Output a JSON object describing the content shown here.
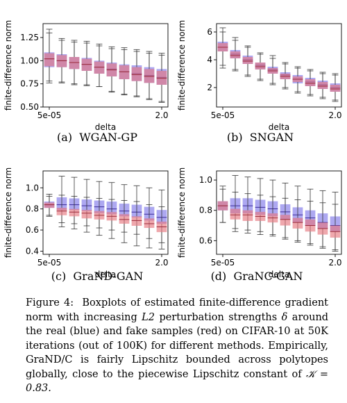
{
  "chart_data": [
    {
      "type": "box",
      "panel_label": "(a)",
      "method": "WGAN-GP",
      "xlabel": "delta",
      "ylabel": "finite-difference norm",
      "x_tick_labels": [
        "5e-05",
        "2.0"
      ],
      "ylim": [
        0.5,
        1.4
      ],
      "yticks": [
        0.5,
        0.75,
        1.0,
        1.25
      ],
      "ytick_labels": [
        "0.50",
        "0.75",
        "1.00",
        "1.25"
      ],
      "series": [
        {
          "color": "#7b73e8",
          "boxes": [
            {
              "min": 0.76,
              "q1": 0.93,
              "median": 1.02,
              "q3": 1.09,
              "max": 1.34
            },
            {
              "min": 0.76,
              "q1": 0.93,
              "median": 1.0,
              "q3": 1.07,
              "max": 1.24
            },
            {
              "min": 0.74,
              "q1": 0.91,
              "median": 0.98,
              "q3": 1.04,
              "max": 1.22
            },
            {
              "min": 0.73,
              "q1": 0.89,
              "median": 0.96,
              "q3": 1.03,
              "max": 1.21
            },
            {
              "min": 0.72,
              "q1": 0.86,
              "median": 0.93,
              "q3": 1.0,
              "max": 1.18
            },
            {
              "min": 0.66,
              "q1": 0.83,
              "median": 0.91,
              "q3": 0.98,
              "max": 1.15
            },
            {
              "min": 0.63,
              "q1": 0.8,
              "median": 0.88,
              "q3": 0.96,
              "max": 1.14
            },
            {
              "min": 0.61,
              "q1": 0.78,
              "median": 0.86,
              "q3": 0.95,
              "max": 1.12
            },
            {
              "min": 0.58,
              "q1": 0.76,
              "median": 0.84,
              "q3": 0.93,
              "max": 1.1
            },
            {
              "min": 0.55,
              "q1": 0.74,
              "median": 0.82,
              "q3": 0.91,
              "max": 1.08
            }
          ]
        },
        {
          "color": "#e5737b",
          "boxes": [
            {
              "min": 0.78,
              "q1": 0.94,
              "median": 1.02,
              "q3": 1.08,
              "max": 1.3
            },
            {
              "min": 0.77,
              "q1": 0.93,
              "median": 1.0,
              "q3": 1.06,
              "max": 1.22
            },
            {
              "min": 0.75,
              "q1": 0.91,
              "median": 0.98,
              "q3": 1.04,
              "max": 1.2
            },
            {
              "min": 0.74,
              "q1": 0.89,
              "median": 0.96,
              "q3": 1.02,
              "max": 1.19
            },
            {
              "min": 0.72,
              "q1": 0.86,
              "median": 0.93,
              "q3": 0.99,
              "max": 1.16
            },
            {
              "min": 0.67,
              "q1": 0.83,
              "median": 0.9,
              "q3": 0.97,
              "max": 1.13
            },
            {
              "min": 0.64,
              "q1": 0.8,
              "median": 0.88,
              "q3": 0.95,
              "max": 1.12
            },
            {
              "min": 0.62,
              "q1": 0.78,
              "median": 0.85,
              "q3": 0.93,
              "max": 1.1
            },
            {
              "min": 0.59,
              "q1": 0.76,
              "median": 0.83,
              "q3": 0.91,
              "max": 1.08
            },
            {
              "min": 0.56,
              "q1": 0.74,
              "median": 0.81,
              "q3": 0.89,
              "max": 1.06
            }
          ]
        }
      ]
    },
    {
      "type": "box",
      "panel_label": "(b)",
      "method": "SNGAN",
      "xlabel": "delta",
      "ylabel": "finite-difference norm",
      "x_tick_labels": [
        "5e-05",
        "2.0"
      ],
      "ylim": [
        0.6,
        6.6
      ],
      "yticks": [
        2,
        4,
        6
      ],
      "ytick_labels": [
        "2",
        "4",
        "6"
      ],
      "series": [
        {
          "color": "#7b73e8",
          "boxes": [
            {
              "min": 3.4,
              "q1": 4.6,
              "median": 4.9,
              "q3": 5.3,
              "max": 6.3
            },
            {
              "min": 3.2,
              "q1": 4.1,
              "median": 4.4,
              "q3": 4.7,
              "max": 5.6
            },
            {
              "min": 2.8,
              "q1": 3.7,
              "median": 4.0,
              "q3": 4.3,
              "max": 5.0
            },
            {
              "min": 2.5,
              "q1": 3.3,
              "median": 3.6,
              "q3": 3.8,
              "max": 4.5
            },
            {
              "min": 2.2,
              "q1": 3.0,
              "median": 3.3,
              "q3": 3.5,
              "max": 4.3
            },
            {
              "min": 1.9,
              "q1": 2.6,
              "median": 2.9,
              "q3": 3.1,
              "max": 3.8
            },
            {
              "min": 1.6,
              "q1": 2.3,
              "median": 2.6,
              "q3": 2.9,
              "max": 3.5
            },
            {
              "min": 1.4,
              "q1": 2.1,
              "median": 2.4,
              "q3": 2.7,
              "max": 3.3
            },
            {
              "min": 1.2,
              "q1": 1.9,
              "median": 2.2,
              "q3": 2.5,
              "max": 3.1
            },
            {
              "min": 1.0,
              "q1": 1.7,
              "median": 2.0,
              "q3": 2.3,
              "max": 3.0
            }
          ]
        },
        {
          "color": "#e5737b",
          "boxes": [
            {
              "min": 3.6,
              "q1": 4.6,
              "median": 4.9,
              "q3": 5.2,
              "max": 6.0
            },
            {
              "min": 3.3,
              "q1": 4.1,
              "median": 4.3,
              "q3": 4.6,
              "max": 5.4
            },
            {
              "min": 2.9,
              "q1": 3.7,
              "median": 3.9,
              "q3": 4.2,
              "max": 4.9
            },
            {
              "min": 2.6,
              "q1": 3.3,
              "median": 3.5,
              "q3": 3.8,
              "max": 4.4
            },
            {
              "min": 2.3,
              "q1": 3.0,
              "median": 3.2,
              "q3": 3.4,
              "max": 4.1
            },
            {
              "min": 2.0,
              "q1": 2.6,
              "median": 2.8,
              "q3": 3.0,
              "max": 3.7
            },
            {
              "min": 1.7,
              "q1": 2.4,
              "median": 2.6,
              "q3": 2.8,
              "max": 3.4
            },
            {
              "min": 1.5,
              "q1": 2.1,
              "median": 2.3,
              "q3": 2.6,
              "max": 3.2
            },
            {
              "min": 1.3,
              "q1": 1.9,
              "median": 2.1,
              "q3": 2.4,
              "max": 3.0
            },
            {
              "min": 1.1,
              "q1": 1.7,
              "median": 1.9,
              "q3": 2.2,
              "max": 2.9
            }
          ]
        }
      ]
    },
    {
      "type": "box",
      "panel_label": "(c)",
      "method": "GraND-GAN",
      "xlabel": "delta",
      "ylabel": "finite-difference norm",
      "x_tick_labels": [
        "5e-05",
        "2.0"
      ],
      "ylim": [
        0.37,
        1.16
      ],
      "yticks": [
        0.4,
        0.6,
        0.8,
        1.0
      ],
      "ytick_labels": [
        "0.4",
        "0.6",
        "0.8",
        "1.0"
      ],
      "series": [
        {
          "color": "#7b73e8",
          "boxes": [
            {
              "min": 0.73,
              "q1": 0.81,
              "median": 0.84,
              "q3": 0.87,
              "max": 0.94
            },
            {
              "min": 0.67,
              "q1": 0.79,
              "median": 0.84,
              "q3": 0.91,
              "max": 1.11
            },
            {
              "min": 0.66,
              "q1": 0.79,
              "median": 0.84,
              "q3": 0.9,
              "max": 1.1
            },
            {
              "min": 0.64,
              "q1": 0.78,
              "median": 0.83,
              "q3": 0.89,
              "max": 1.08
            },
            {
              "min": 0.62,
              "q1": 0.76,
              "median": 0.82,
              "q3": 0.88,
              "max": 1.06
            },
            {
              "min": 0.6,
              "q1": 0.75,
              "median": 0.8,
              "q3": 0.87,
              "max": 1.05
            },
            {
              "min": 0.58,
              "q1": 0.73,
              "median": 0.78,
              "q3": 0.85,
              "max": 1.03
            },
            {
              "min": 0.56,
              "q1": 0.72,
              "median": 0.77,
              "q3": 0.84,
              "max": 1.02
            },
            {
              "min": 0.52,
              "q1": 0.69,
              "median": 0.75,
              "q3": 0.82,
              "max": 1.0
            },
            {
              "min": 0.48,
              "q1": 0.66,
              "median": 0.72,
              "q3": 0.79,
              "max": 0.98
            }
          ]
        },
        {
          "color": "#e5737b",
          "boxes": [
            {
              "min": 0.74,
              "q1": 0.81,
              "median": 0.84,
              "q3": 0.86,
              "max": 0.92
            },
            {
              "min": 0.63,
              "q1": 0.74,
              "median": 0.78,
              "q3": 0.81,
              "max": 0.93
            },
            {
              "min": 0.61,
              "q1": 0.73,
              "median": 0.77,
              "q3": 0.8,
              "max": 0.92
            },
            {
              "min": 0.58,
              "q1": 0.71,
              "median": 0.76,
              "q3": 0.79,
              "max": 0.91
            },
            {
              "min": 0.55,
              "q1": 0.7,
              "median": 0.74,
              "q3": 0.78,
              "max": 0.9
            },
            {
              "min": 0.52,
              "q1": 0.69,
              "median": 0.73,
              "q3": 0.77,
              "max": 0.89
            },
            {
              "min": 0.48,
              "q1": 0.66,
              "median": 0.7,
              "q3": 0.75,
              "max": 0.88
            },
            {
              "min": 0.45,
              "q1": 0.64,
              "median": 0.69,
              "q3": 0.73,
              "max": 0.87
            },
            {
              "min": 0.43,
              "q1": 0.62,
              "median": 0.66,
              "q3": 0.71,
              "max": 0.84
            },
            {
              "min": 0.42,
              "q1": 0.58,
              "median": 0.63,
              "q3": 0.68,
              "max": 0.82
            }
          ]
        }
      ]
    },
    {
      "type": "box",
      "panel_label": "(d)",
      "method": "GraNC-GAN",
      "xlabel": "delta",
      "ylabel": "finite-difference norm",
      "x_tick_labels": [
        "5e-05",
        "2.0"
      ],
      "ylim": [
        0.51,
        1.06
      ],
      "yticks": [
        0.6,
        0.8,
        1.0
      ],
      "ytick_labels": [
        "0.6",
        "0.8",
        "1.0"
      ],
      "series": [
        {
          "color": "#7b73e8",
          "boxes": [
            {
              "min": 0.72,
              "q1": 0.8,
              "median": 0.83,
              "q3": 0.86,
              "max": 0.96
            },
            {
              "min": 0.68,
              "q1": 0.78,
              "median": 0.83,
              "q3": 0.88,
              "max": 1.03
            },
            {
              "min": 0.67,
              "q1": 0.78,
              "median": 0.83,
              "q3": 0.88,
              "max": 1.02
            },
            {
              "min": 0.66,
              "q1": 0.77,
              "median": 0.82,
              "q3": 0.87,
              "max": 1.01
            },
            {
              "min": 0.64,
              "q1": 0.76,
              "median": 0.81,
              "q3": 0.86,
              "max": 1.0
            },
            {
              "min": 0.62,
              "q1": 0.74,
              "median": 0.79,
              "q3": 0.84,
              "max": 0.98
            },
            {
              "min": 0.6,
              "q1": 0.72,
              "median": 0.77,
              "q3": 0.82,
              "max": 0.96
            },
            {
              "min": 0.58,
              "q1": 0.7,
              "median": 0.75,
              "q3": 0.8,
              "max": 0.94
            },
            {
              "min": 0.56,
              "q1": 0.68,
              "median": 0.72,
              "q3": 0.78,
              "max": 0.93
            },
            {
              "min": 0.54,
              "q1": 0.66,
              "median": 0.7,
              "q3": 0.76,
              "max": 0.92
            }
          ]
        },
        {
          "color": "#e5737b",
          "boxes": [
            {
              "min": 0.72,
              "q1": 0.8,
              "median": 0.83,
              "q3": 0.86,
              "max": 0.94
            },
            {
              "min": 0.66,
              "q1": 0.74,
              "median": 0.77,
              "q3": 0.81,
              "max": 0.92
            },
            {
              "min": 0.65,
              "q1": 0.73,
              "median": 0.77,
              "q3": 0.8,
              "max": 0.91
            },
            {
              "min": 0.64,
              "q1": 0.73,
              "median": 0.76,
              "q3": 0.79,
              "max": 0.9
            },
            {
              "min": 0.63,
              "q1": 0.72,
              "median": 0.75,
              "q3": 0.78,
              "max": 0.89
            },
            {
              "min": 0.61,
              "q1": 0.7,
              "median": 0.74,
              "q3": 0.77,
              "max": 0.88
            },
            {
              "min": 0.59,
              "q1": 0.68,
              "median": 0.72,
              "q3": 0.75,
              "max": 0.87
            },
            {
              "min": 0.57,
              "q1": 0.66,
              "median": 0.7,
              "q3": 0.74,
              "max": 0.86
            },
            {
              "min": 0.55,
              "q1": 0.64,
              "median": 0.68,
              "q3": 0.72,
              "max": 0.85
            },
            {
              "min": 0.53,
              "q1": 0.62,
              "median": 0.66,
              "q3": 0.7,
              "max": 0.84
            }
          ]
        }
      ]
    }
  ],
  "caption": {
    "label": "Figure 4:",
    "text_before_L2": "Boxplots of estimated finite-difference gradient norm with increasing",
    "L2": "L2",
    "text_before_delta": "perturbation strengths",
    "delta_symbol": "δ",
    "text_after_delta": "around the real (blue) and fake samples (red) on CIFAR-10 at 50K iterations (out of 100K) for different methods. Empirically, GraND/C is fairly Lipschitz bounded across polytopes globally, close to the piecewise Lipschitz constant of",
    "equation": "𝒦 = 0.83."
  }
}
